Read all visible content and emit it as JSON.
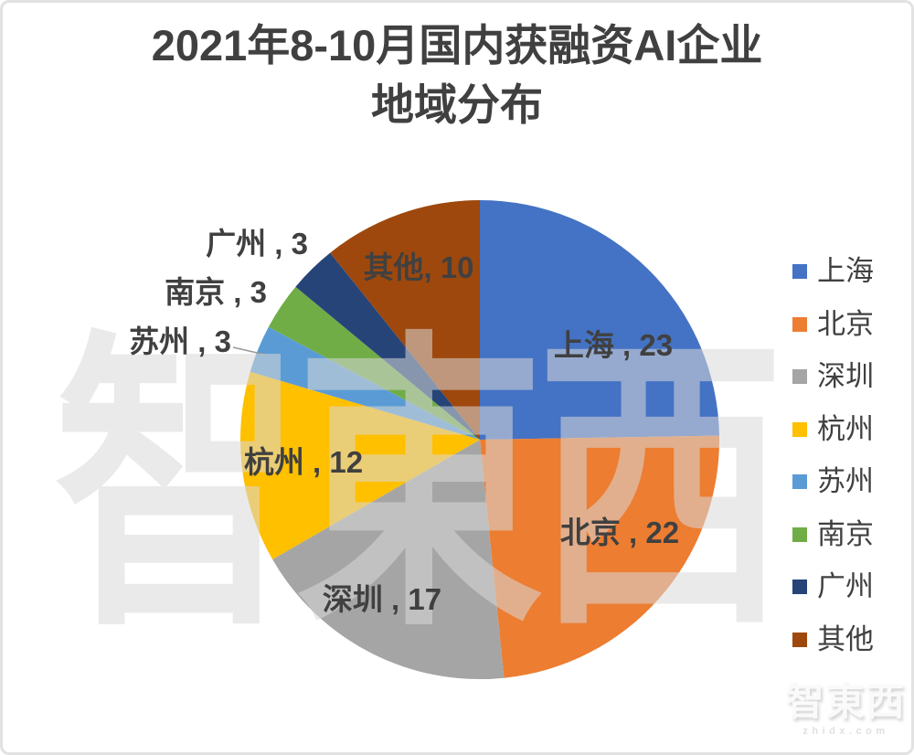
{
  "title": {
    "line1": "2021年8-10月国内获融资AI企业",
    "line2": "地域分布"
  },
  "chart_data": {
    "type": "pie",
    "title": "2021年8-10月国内获融资AI企业地域分布",
    "categories": [
      "上海",
      "北京",
      "深圳",
      "杭州",
      "苏州",
      "南京",
      "广州",
      "其他"
    ],
    "values": [
      23,
      22,
      17,
      12,
      3,
      3,
      3,
      10
    ],
    "slice_labels": [
      "上海 , 23",
      "北京 , 22",
      "深圳 , 17",
      "杭州 , 12",
      "苏州 , 3",
      "南京 , 3",
      "广州 , 3",
      "其他, 10"
    ],
    "colors": [
      "#4472C4",
      "#ED7D31",
      "#A5A5A5",
      "#FFC000",
      "#5B9BD5",
      "#70AD47",
      "#264478",
      "#9E480E"
    ],
    "label_color": "#404040",
    "start_angle_deg": 0,
    "direction": "clockwise",
    "legend_position": "right",
    "legend_items": [
      "上海",
      "北京",
      "深圳",
      "杭州",
      "苏州",
      "南京",
      "广州",
      "其他"
    ]
  },
  "watermark": {
    "text": "智東西"
  },
  "brand": {
    "logo_text": "智東西",
    "site": "zhidx.com"
  }
}
